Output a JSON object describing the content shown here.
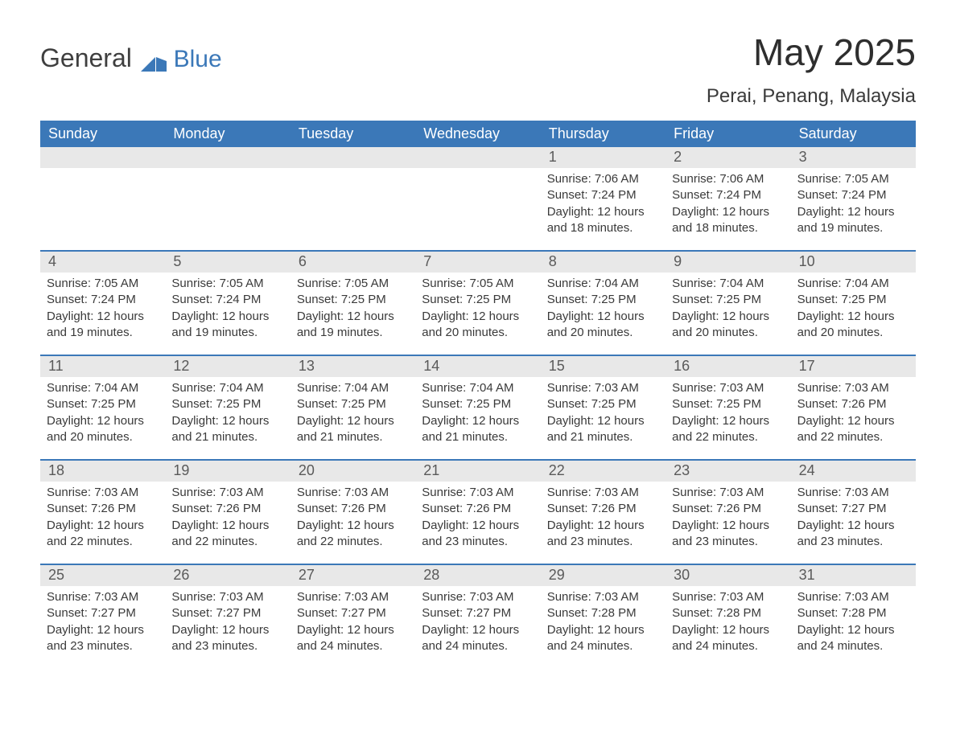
{
  "logo": {
    "general": "General",
    "blue": "Blue",
    "tri_color": "#3b78b8"
  },
  "title": "May 2025",
  "subtitle": "Perai, Penang, Malaysia",
  "colors": {
    "header_bg": "#3b78b8",
    "header_fg": "#ffffff",
    "daynum_bg": "#e8e8e8",
    "daynum_fg": "#5a5a5a",
    "body_fg": "#3a3a3a",
    "rule": "#3b78b8"
  },
  "day_names": [
    "Sunday",
    "Monday",
    "Tuesday",
    "Wednesday",
    "Thursday",
    "Friday",
    "Saturday"
  ],
  "weeks": [
    [
      {
        "day": "",
        "sunrise": "",
        "sunset": "",
        "daylight1": "",
        "daylight2": ""
      },
      {
        "day": "",
        "sunrise": "",
        "sunset": "",
        "daylight1": "",
        "daylight2": ""
      },
      {
        "day": "",
        "sunrise": "",
        "sunset": "",
        "daylight1": "",
        "daylight2": ""
      },
      {
        "day": "",
        "sunrise": "",
        "sunset": "",
        "daylight1": "",
        "daylight2": ""
      },
      {
        "day": "1",
        "sunrise": "Sunrise: 7:06 AM",
        "sunset": "Sunset: 7:24 PM",
        "daylight1": "Daylight: 12 hours",
        "daylight2": "and 18 minutes."
      },
      {
        "day": "2",
        "sunrise": "Sunrise: 7:06 AM",
        "sunset": "Sunset: 7:24 PM",
        "daylight1": "Daylight: 12 hours",
        "daylight2": "and 18 minutes."
      },
      {
        "day": "3",
        "sunrise": "Sunrise: 7:05 AM",
        "sunset": "Sunset: 7:24 PM",
        "daylight1": "Daylight: 12 hours",
        "daylight2": "and 19 minutes."
      }
    ],
    [
      {
        "day": "4",
        "sunrise": "Sunrise: 7:05 AM",
        "sunset": "Sunset: 7:24 PM",
        "daylight1": "Daylight: 12 hours",
        "daylight2": "and 19 minutes."
      },
      {
        "day": "5",
        "sunrise": "Sunrise: 7:05 AM",
        "sunset": "Sunset: 7:24 PM",
        "daylight1": "Daylight: 12 hours",
        "daylight2": "and 19 minutes."
      },
      {
        "day": "6",
        "sunrise": "Sunrise: 7:05 AM",
        "sunset": "Sunset: 7:25 PM",
        "daylight1": "Daylight: 12 hours",
        "daylight2": "and 19 minutes."
      },
      {
        "day": "7",
        "sunrise": "Sunrise: 7:05 AM",
        "sunset": "Sunset: 7:25 PM",
        "daylight1": "Daylight: 12 hours",
        "daylight2": "and 20 minutes."
      },
      {
        "day": "8",
        "sunrise": "Sunrise: 7:04 AM",
        "sunset": "Sunset: 7:25 PM",
        "daylight1": "Daylight: 12 hours",
        "daylight2": "and 20 minutes."
      },
      {
        "day": "9",
        "sunrise": "Sunrise: 7:04 AM",
        "sunset": "Sunset: 7:25 PM",
        "daylight1": "Daylight: 12 hours",
        "daylight2": "and 20 minutes."
      },
      {
        "day": "10",
        "sunrise": "Sunrise: 7:04 AM",
        "sunset": "Sunset: 7:25 PM",
        "daylight1": "Daylight: 12 hours",
        "daylight2": "and 20 minutes."
      }
    ],
    [
      {
        "day": "11",
        "sunrise": "Sunrise: 7:04 AM",
        "sunset": "Sunset: 7:25 PM",
        "daylight1": "Daylight: 12 hours",
        "daylight2": "and 20 minutes."
      },
      {
        "day": "12",
        "sunrise": "Sunrise: 7:04 AM",
        "sunset": "Sunset: 7:25 PM",
        "daylight1": "Daylight: 12 hours",
        "daylight2": "and 21 minutes."
      },
      {
        "day": "13",
        "sunrise": "Sunrise: 7:04 AM",
        "sunset": "Sunset: 7:25 PM",
        "daylight1": "Daylight: 12 hours",
        "daylight2": "and 21 minutes."
      },
      {
        "day": "14",
        "sunrise": "Sunrise: 7:04 AM",
        "sunset": "Sunset: 7:25 PM",
        "daylight1": "Daylight: 12 hours",
        "daylight2": "and 21 minutes."
      },
      {
        "day": "15",
        "sunrise": "Sunrise: 7:03 AM",
        "sunset": "Sunset: 7:25 PM",
        "daylight1": "Daylight: 12 hours",
        "daylight2": "and 21 minutes."
      },
      {
        "day": "16",
        "sunrise": "Sunrise: 7:03 AM",
        "sunset": "Sunset: 7:25 PM",
        "daylight1": "Daylight: 12 hours",
        "daylight2": "and 22 minutes."
      },
      {
        "day": "17",
        "sunrise": "Sunrise: 7:03 AM",
        "sunset": "Sunset: 7:26 PM",
        "daylight1": "Daylight: 12 hours",
        "daylight2": "and 22 minutes."
      }
    ],
    [
      {
        "day": "18",
        "sunrise": "Sunrise: 7:03 AM",
        "sunset": "Sunset: 7:26 PM",
        "daylight1": "Daylight: 12 hours",
        "daylight2": "and 22 minutes."
      },
      {
        "day": "19",
        "sunrise": "Sunrise: 7:03 AM",
        "sunset": "Sunset: 7:26 PM",
        "daylight1": "Daylight: 12 hours",
        "daylight2": "and 22 minutes."
      },
      {
        "day": "20",
        "sunrise": "Sunrise: 7:03 AM",
        "sunset": "Sunset: 7:26 PM",
        "daylight1": "Daylight: 12 hours",
        "daylight2": "and 22 minutes."
      },
      {
        "day": "21",
        "sunrise": "Sunrise: 7:03 AM",
        "sunset": "Sunset: 7:26 PM",
        "daylight1": "Daylight: 12 hours",
        "daylight2": "and 23 minutes."
      },
      {
        "day": "22",
        "sunrise": "Sunrise: 7:03 AM",
        "sunset": "Sunset: 7:26 PM",
        "daylight1": "Daylight: 12 hours",
        "daylight2": "and 23 minutes."
      },
      {
        "day": "23",
        "sunrise": "Sunrise: 7:03 AM",
        "sunset": "Sunset: 7:26 PM",
        "daylight1": "Daylight: 12 hours",
        "daylight2": "and 23 minutes."
      },
      {
        "day": "24",
        "sunrise": "Sunrise: 7:03 AM",
        "sunset": "Sunset: 7:27 PM",
        "daylight1": "Daylight: 12 hours",
        "daylight2": "and 23 minutes."
      }
    ],
    [
      {
        "day": "25",
        "sunrise": "Sunrise: 7:03 AM",
        "sunset": "Sunset: 7:27 PM",
        "daylight1": "Daylight: 12 hours",
        "daylight2": "and 23 minutes."
      },
      {
        "day": "26",
        "sunrise": "Sunrise: 7:03 AM",
        "sunset": "Sunset: 7:27 PM",
        "daylight1": "Daylight: 12 hours",
        "daylight2": "and 23 minutes."
      },
      {
        "day": "27",
        "sunrise": "Sunrise: 7:03 AM",
        "sunset": "Sunset: 7:27 PM",
        "daylight1": "Daylight: 12 hours",
        "daylight2": "and 24 minutes."
      },
      {
        "day": "28",
        "sunrise": "Sunrise: 7:03 AM",
        "sunset": "Sunset: 7:27 PM",
        "daylight1": "Daylight: 12 hours",
        "daylight2": "and 24 minutes."
      },
      {
        "day": "29",
        "sunrise": "Sunrise: 7:03 AM",
        "sunset": "Sunset: 7:28 PM",
        "daylight1": "Daylight: 12 hours",
        "daylight2": "and 24 minutes."
      },
      {
        "day": "30",
        "sunrise": "Sunrise: 7:03 AM",
        "sunset": "Sunset: 7:28 PM",
        "daylight1": "Daylight: 12 hours",
        "daylight2": "and 24 minutes."
      },
      {
        "day": "31",
        "sunrise": "Sunrise: 7:03 AM",
        "sunset": "Sunset: 7:28 PM",
        "daylight1": "Daylight: 12 hours",
        "daylight2": "and 24 minutes."
      }
    ]
  ]
}
